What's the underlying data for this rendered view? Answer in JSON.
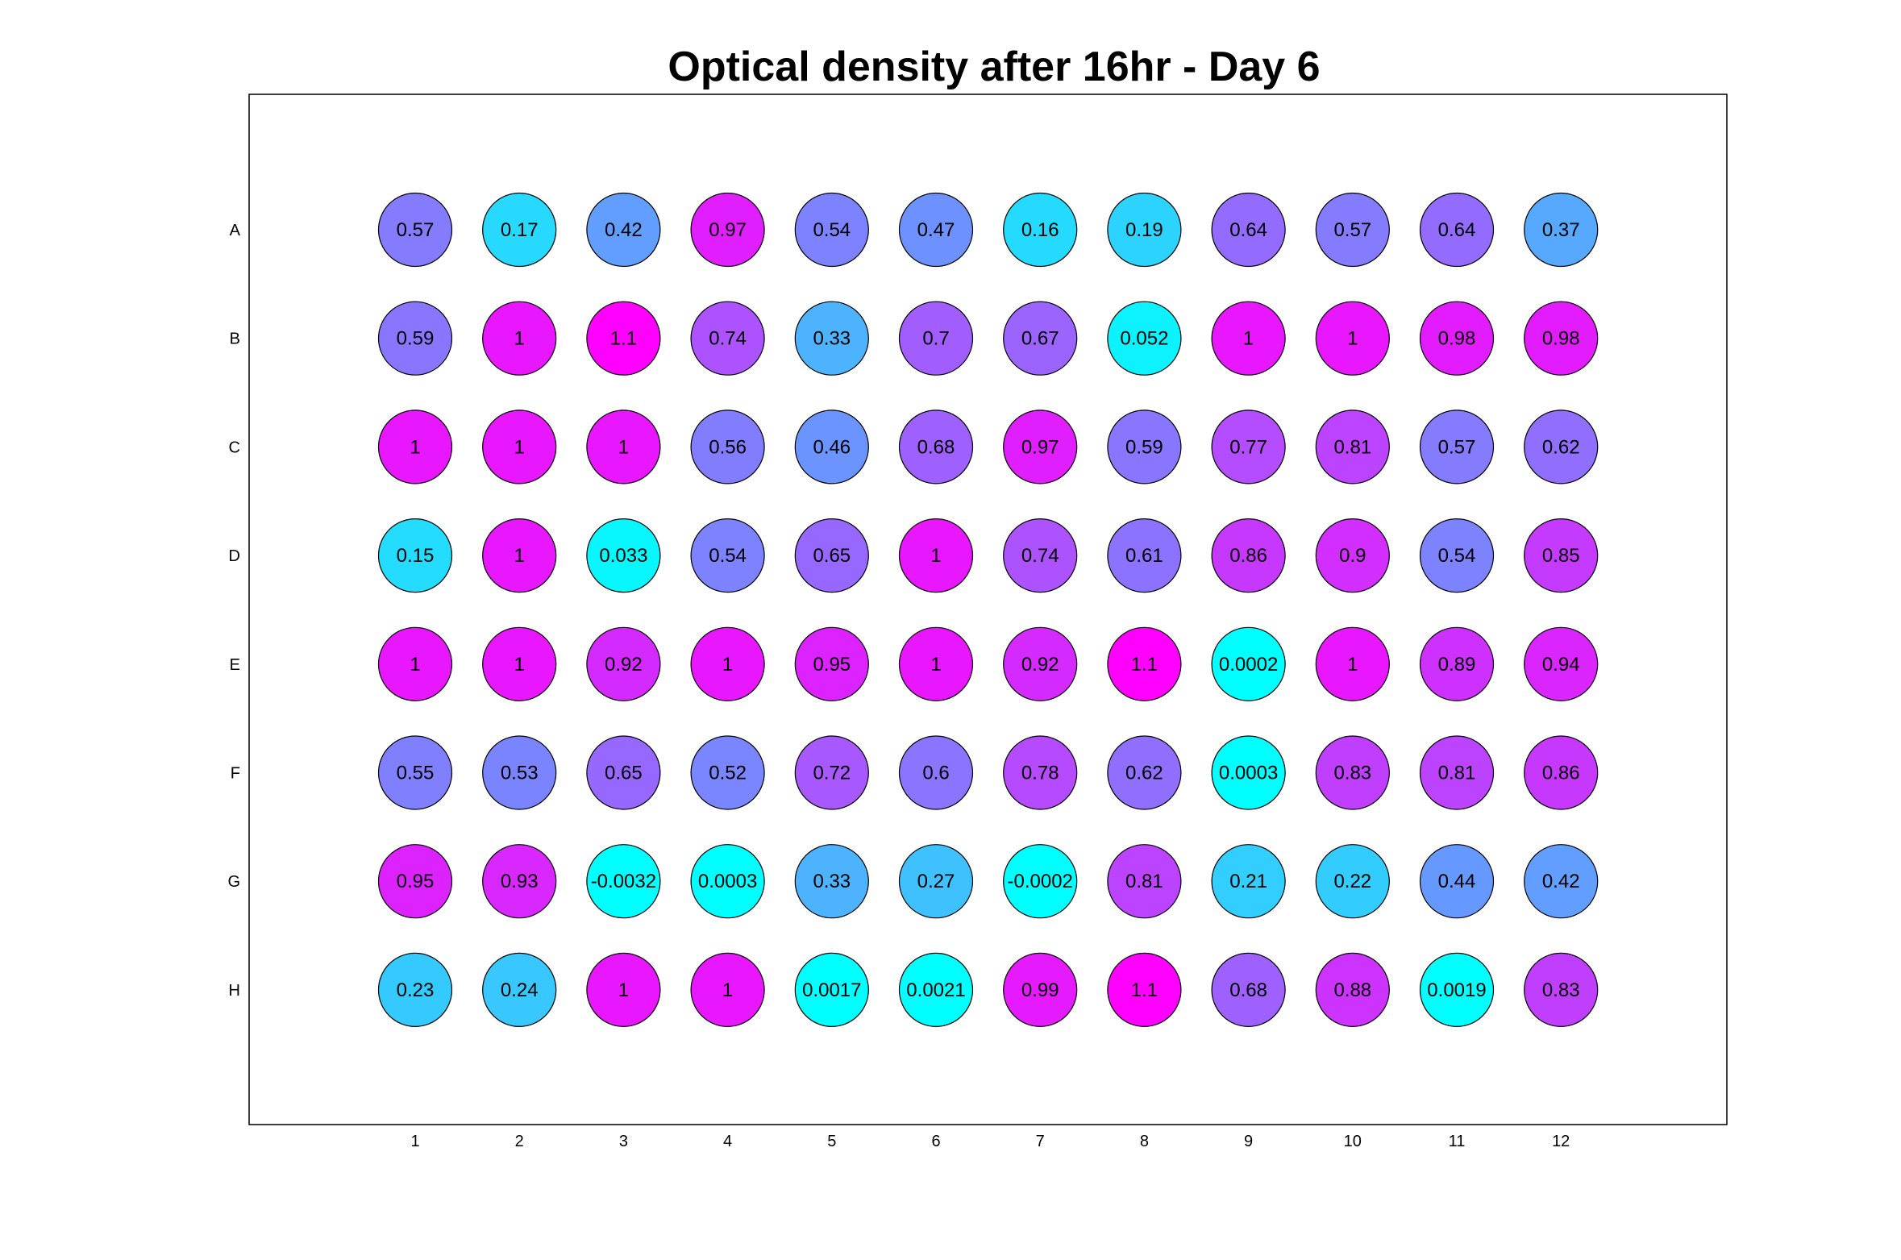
{
  "chart_data": {
    "type": "heatmap",
    "title": "Optical density after 16hr - Day 6",
    "xlabel": "",
    "ylabel": "",
    "rows": [
      "A",
      "B",
      "C",
      "D",
      "E",
      "F",
      "G",
      "H"
    ],
    "columns": [
      "1",
      "2",
      "3",
      "4",
      "5",
      "6",
      "7",
      "8",
      "9",
      "10",
      "11",
      "12"
    ],
    "values": [
      [
        0.57,
        0.17,
        0.42,
        0.97,
        0.54,
        0.47,
        0.16,
        0.19,
        0.64,
        0.57,
        0.64,
        0.37
      ],
      [
        0.59,
        1,
        1.1,
        0.74,
        0.33,
        0.7,
        0.67,
        0.052,
        1,
        1,
        0.98,
        0.98
      ],
      [
        1,
        1,
        1,
        0.56,
        0.46,
        0.68,
        0.97,
        0.59,
        0.77,
        0.81,
        0.57,
        0.62
      ],
      [
        0.15,
        1,
        0.033,
        0.54,
        0.65,
        1,
        0.74,
        0.61,
        0.86,
        0.9,
        0.54,
        0.85
      ],
      [
        1,
        1,
        0.92,
        1,
        0.95,
        1,
        0.92,
        1.1,
        0.0002,
        1,
        0.89,
        0.94
      ],
      [
        0.55,
        0.53,
        0.65,
        0.52,
        0.72,
        0.6,
        0.78,
        0.62,
        0.0003,
        0.83,
        0.81,
        0.86
      ],
      [
        0.95,
        0.93,
        -0.0032,
        0.0003,
        0.33,
        0.27,
        -0.0002,
        0.81,
        0.21,
        0.22,
        0.44,
        0.42
      ],
      [
        0.23,
        0.24,
        1,
        1,
        0.0017,
        0.0021,
        0.99,
        1.1,
        0.68,
        0.88,
        0.0019,
        0.83
      ]
    ],
    "labels": [
      [
        "0.57",
        "0.17",
        "0.42",
        "0.97",
        "0.54",
        "0.47",
        "0.16",
        "0.19",
        "0.64",
        "0.57",
        "0.64",
        "0.37"
      ],
      [
        "0.59",
        "1",
        "1.1",
        "0.74",
        "0.33",
        "0.7",
        "0.67",
        "0.052",
        "1",
        "1",
        "0.98",
        "0.98"
      ],
      [
        "1",
        "1",
        "1",
        "0.56",
        "0.46",
        "0.68",
        "0.97",
        "0.59",
        "0.77",
        "0.81",
        "0.57",
        "0.62"
      ],
      [
        "0.15",
        "1",
        "0.033",
        "0.54",
        "0.65",
        "1",
        "0.74",
        "0.61",
        "0.86",
        "0.9",
        "0.54",
        "0.85"
      ],
      [
        "1",
        "1",
        "0.92",
        "1",
        "0.95",
        "1",
        "0.92",
        "1.1",
        "0.0002",
        "1",
        "0.89",
        "0.94"
      ],
      [
        "0.55",
        "0.53",
        "0.65",
        "0.52",
        "0.72",
        "0.6",
        "0.78",
        "0.62",
        "0.0003",
        "0.83",
        "0.81",
        "0.86"
      ],
      [
        "0.95",
        "0.93",
        "-0.0032",
        "0.0003",
        "0.33",
        "0.27",
        "-0.0002",
        "0.81",
        "0.21",
        "0.22",
        "0.44",
        "0.42"
      ],
      [
        "0.23",
        "0.24",
        "1",
        "1",
        "0.0017",
        "0.0021",
        "0.99",
        "1.1",
        "0.68",
        "0.88",
        "0.0019",
        "0.83"
      ]
    ],
    "color_scale": {
      "name": "cool",
      "min": 0,
      "max": 1.1,
      "low_color": "#00ffff",
      "high_color": "#ff00ff"
    },
    "grid": false,
    "legend": "none"
  }
}
